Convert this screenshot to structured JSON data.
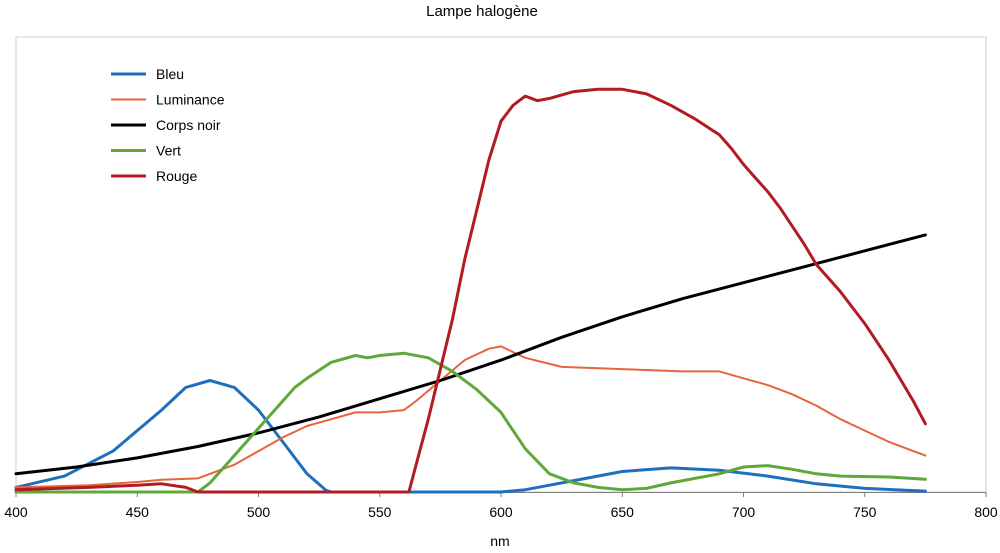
{
  "chart_data": {
    "type": "line",
    "title": "Lampe halogène",
    "xlabel": "nm",
    "ylabel": "",
    "xlim": [
      400,
      800
    ],
    "x_ticks": [
      400,
      450,
      500,
      550,
      600,
      650,
      700,
      750,
      800
    ],
    "ylim": [
      0,
      1
    ],
    "grid": false,
    "legend_position": "top-left",
    "series": [
      {
        "name": "Bleu",
        "color": "#1f6fbf",
        "points": [
          [
            400,
            0.01
          ],
          [
            420,
            0.035
          ],
          [
            440,
            0.09
          ],
          [
            460,
            0.18
          ],
          [
            470,
            0.23
          ],
          [
            480,
            0.245
          ],
          [
            490,
            0.23
          ],
          [
            500,
            0.18
          ],
          [
            510,
            0.11
          ],
          [
            520,
            0.04
          ],
          [
            528,
            0.003
          ],
          [
            530,
            0
          ],
          [
            600,
            0
          ],
          [
            610,
            0.005
          ],
          [
            620,
            0.015
          ],
          [
            630,
            0.025
          ],
          [
            650,
            0.045
          ],
          [
            670,
            0.053
          ],
          [
            690,
            0.048
          ],
          [
            710,
            0.035
          ],
          [
            730,
            0.018
          ],
          [
            750,
            0.008
          ],
          [
            775,
            0.002
          ]
        ]
      },
      {
        "name": "Luminance",
        "color": "#e8643a",
        "points": [
          [
            400,
            0.01
          ],
          [
            430,
            0.015
          ],
          [
            450,
            0.022
          ],
          [
            460,
            0.027
          ],
          [
            475,
            0.03
          ],
          [
            490,
            0.06
          ],
          [
            500,
            0.09
          ],
          [
            510,
            0.12
          ],
          [
            520,
            0.145
          ],
          [
            530,
            0.16
          ],
          [
            540,
            0.175
          ],
          [
            550,
            0.175
          ],
          [
            560,
            0.18
          ],
          [
            565,
            0.2
          ],
          [
            575,
            0.245
          ],
          [
            585,
            0.29
          ],
          [
            595,
            0.315
          ],
          [
            600,
            0.32
          ],
          [
            610,
            0.295
          ],
          [
            625,
            0.275
          ],
          [
            650,
            0.27
          ],
          [
            675,
            0.265
          ],
          [
            690,
            0.265
          ],
          [
            700,
            0.25
          ],
          [
            710,
            0.235
          ],
          [
            720,
            0.215
          ],
          [
            730,
            0.19
          ],
          [
            740,
            0.16
          ],
          [
            750,
            0.135
          ],
          [
            760,
            0.11
          ],
          [
            770,
            0.09
          ],
          [
            775,
            0.08
          ]
        ]
      },
      {
        "name": "Corps noir",
        "color": "#000000",
        "points": [
          [
            400,
            0.04
          ],
          [
            425,
            0.055
          ],
          [
            450,
            0.075
          ],
          [
            475,
            0.1
          ],
          [
            500,
            0.13
          ],
          [
            525,
            0.165
          ],
          [
            550,
            0.205
          ],
          [
            575,
            0.245
          ],
          [
            600,
            0.29
          ],
          [
            625,
            0.34
          ],
          [
            650,
            0.385
          ],
          [
            675,
            0.425
          ],
          [
            700,
            0.46
          ],
          [
            725,
            0.495
          ],
          [
            750,
            0.53
          ],
          [
            775,
            0.565
          ]
        ]
      },
      {
        "name": "Vert",
        "color": "#5fa83a",
        "points": [
          [
            400,
            0
          ],
          [
            475,
            0
          ],
          [
            480,
            0.02
          ],
          [
            490,
            0.08
          ],
          [
            500,
            0.14
          ],
          [
            510,
            0.2
          ],
          [
            515,
            0.23
          ],
          [
            520,
            0.25
          ],
          [
            530,
            0.285
          ],
          [
            540,
            0.3
          ],
          [
            545,
            0.295
          ],
          [
            550,
            0.3
          ],
          [
            560,
            0.305
          ],
          [
            570,
            0.295
          ],
          [
            580,
            0.265
          ],
          [
            590,
            0.225
          ],
          [
            600,
            0.175
          ],
          [
            605,
            0.135
          ],
          [
            610,
            0.095
          ],
          [
            620,
            0.04
          ],
          [
            630,
            0.02
          ],
          [
            640,
            0.01
          ],
          [
            650,
            0.005
          ],
          [
            660,
            0.008
          ],
          [
            670,
            0.02
          ],
          [
            690,
            0.04
          ],
          [
            700,
            0.055
          ],
          [
            710,
            0.058
          ],
          [
            720,
            0.05
          ],
          [
            730,
            0.04
          ],
          [
            740,
            0.035
          ],
          [
            760,
            0.033
          ],
          [
            775,
            0.028
          ]
        ]
      },
      {
        "name": "Rouge",
        "color": "#b01c22",
        "points": [
          [
            400,
            0.005
          ],
          [
            430,
            0.01
          ],
          [
            450,
            0.015
          ],
          [
            460,
            0.018
          ],
          [
            470,
            0.01
          ],
          [
            475,
            0
          ],
          [
            562,
            0
          ],
          [
            565,
            0.06
          ],
          [
            570,
            0.16
          ],
          [
            575,
            0.27
          ],
          [
            580,
            0.38
          ],
          [
            585,
            0.51
          ],
          [
            590,
            0.62
          ],
          [
            595,
            0.73
          ],
          [
            600,
            0.815
          ],
          [
            605,
            0.85
          ],
          [
            610,
            0.87
          ],
          [
            615,
            0.86
          ],
          [
            620,
            0.865
          ],
          [
            630,
            0.88
          ],
          [
            640,
            0.885
          ],
          [
            650,
            0.885
          ],
          [
            660,
            0.875
          ],
          [
            670,
            0.85
          ],
          [
            680,
            0.82
          ],
          [
            690,
            0.785
          ],
          [
            695,
            0.755
          ],
          [
            700,
            0.72
          ],
          [
            705,
            0.69
          ],
          [
            710,
            0.66
          ],
          [
            715,
            0.625
          ],
          [
            720,
            0.585
          ],
          [
            725,
            0.545
          ],
          [
            730,
            0.5
          ],
          [
            740,
            0.44
          ],
          [
            750,
            0.37
          ],
          [
            760,
            0.29
          ],
          [
            770,
            0.2
          ],
          [
            775,
            0.15
          ]
        ]
      }
    ]
  }
}
